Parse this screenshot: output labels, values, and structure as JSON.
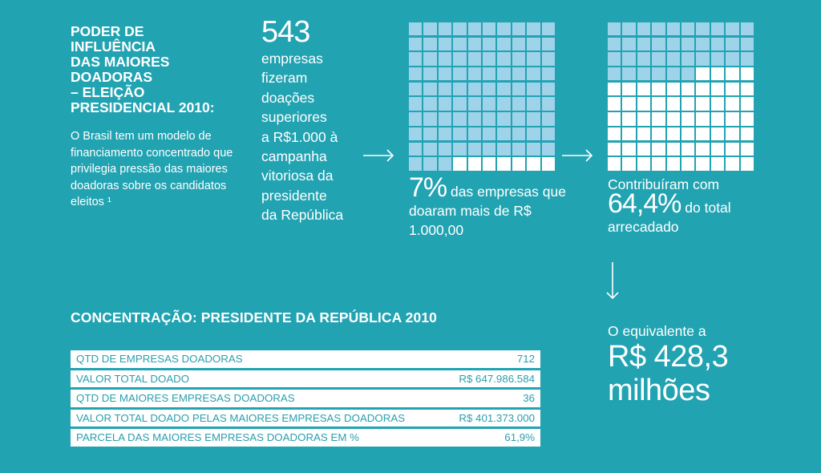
{
  "intro": {
    "title": "PODER DE\nINFLUÊNCIA\nDAS MAIORES\nDOADORAS\n– ELEIÇÃO\nPRESIDENCIAL 2010:",
    "body": "O Brasil tem um modelo de financiamento concentrado que privilegia pressão das maiores doadoras sobre os candidatos eleitos ¹"
  },
  "companies": {
    "count": "543",
    "description": "empresas\nfizeram\ndoações\nsuperiores\na R$1.000 à\ncampanha\nvitoriosa da\npresidente\nda República"
  },
  "stat_share": {
    "big": "7%",
    "text": " das empresas que doaram mais de R$ 1.000,00",
    "highlighted_fraction": 0.07
  },
  "stat_contribution": {
    "prefix": "Contribuíram com",
    "big": "64,4%",
    "suffix": " do total arrecadado",
    "highlighted_fraction": 0.644
  },
  "stat_equivalent": {
    "prefix": "O equivalente a",
    "amount": "R$ 428,3",
    "unit": "milhões"
  },
  "table": {
    "title": "CONCENTRAÇÃO: PRESIDENTE DA REPÚBLICA 2010",
    "rows": [
      {
        "label": "QTD  DE EMPRESAS DOADORAS",
        "value": "712"
      },
      {
        "label": "VALOR TOTAL DOADO",
        "value": "R$ 647.986.584"
      },
      {
        "label": "QTD DE MAIORES EMPRESAS DOADORAS",
        "value": "36"
      },
      {
        "label": "VALOR TOTAL DOADO PELAS MAIORES EMPRESAS DOADORAS",
        "value": "R$ 401.373.000"
      },
      {
        "label": "PARCELA DAS MAIORES EMPRESAS DOADORAS EM %",
        "value": "61,9%"
      }
    ]
  },
  "colors": {
    "background": "#22a3b2",
    "cell_light": "#9fd3ea",
    "cell_highlight": "#ffffff",
    "table_text": "#2a9fae"
  },
  "icons": [
    "arrow-right-icon",
    "arrow-right-icon",
    "arrow-down-icon"
  ]
}
